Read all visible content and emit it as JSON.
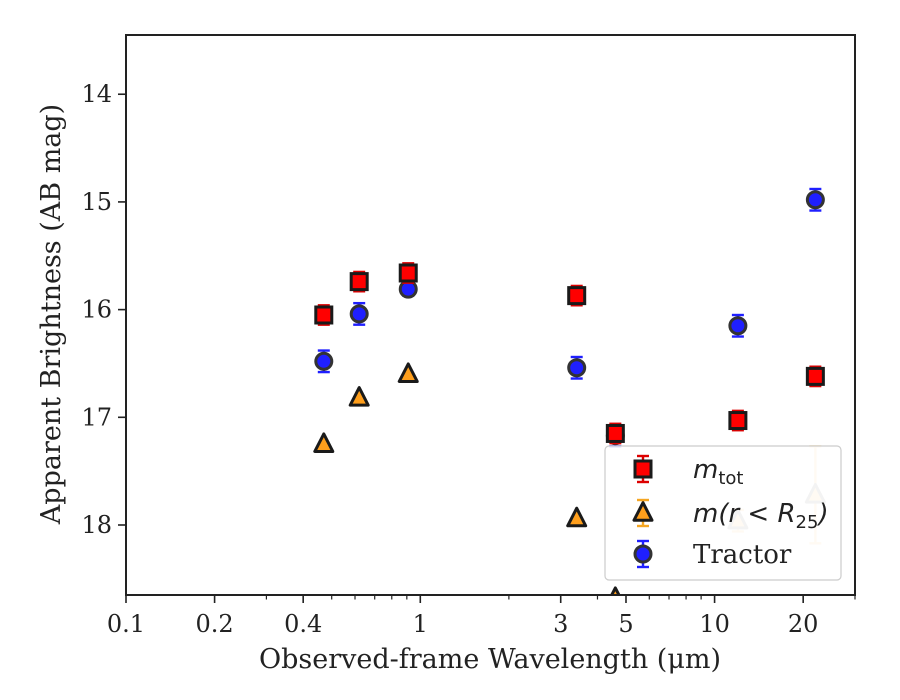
{
  "chart_data": {
    "type": "scatter",
    "xlabel": "Observed-frame Wavelength (μm)",
    "ylabel": "Apparent Brightness (AB mag)",
    "x_scale": "log",
    "xlim": [
      0.1,
      30
    ],
    "ylim": [
      18.65,
      13.45
    ],
    "y_inverted": true,
    "x_tick_labels": [
      "0.1",
      "0.2",
      "0.4",
      "1",
      "3",
      "5",
      "10",
      "20"
    ],
    "x_ticks": [
      0.1,
      0.2,
      0.4,
      1,
      3,
      5,
      10,
      20
    ],
    "y_tick_labels": [
      "14",
      "15",
      "16",
      "17",
      "18"
    ],
    "y_ticks": [
      14,
      15,
      16,
      17,
      18
    ],
    "legend_position": "lower-right",
    "series": [
      {
        "name": "m_tot",
        "legend_main": "m",
        "legend_sub": "tot",
        "marker": "square",
        "color": "#ff0000",
        "error_color": "#dd0000",
        "edge_color": "#1a1a1a",
        "points": [
          {
            "x": 0.47,
            "y": 16.05,
            "err": 0.09
          },
          {
            "x": 0.62,
            "y": 15.74,
            "err": 0.09
          },
          {
            "x": 0.91,
            "y": 15.66,
            "err": 0.09
          },
          {
            "x": 3.4,
            "y": 15.87,
            "err": 0.09
          },
          {
            "x": 4.6,
            "y": 17.15,
            "err": 0.09
          },
          {
            "x": 12.0,
            "y": 17.03,
            "err": 0.09
          },
          {
            "x": 22.0,
            "y": 16.62,
            "err": 0.09
          }
        ]
      },
      {
        "name": "m(r < R25)",
        "legend_main": "m(r < R",
        "legend_sub": "25",
        "legend_tail": ")",
        "marker": "triangle",
        "color": "#ff9f1c",
        "error_color": "#f5a623",
        "edge_color": "#1a1a1a",
        "points": [
          {
            "x": 0.47,
            "y": 17.25,
            "err": 0.0
          },
          {
            "x": 0.62,
            "y": 16.82,
            "err": 0.0
          },
          {
            "x": 0.91,
            "y": 16.6,
            "err": 0.0
          },
          {
            "x": 3.4,
            "y": 17.94,
            "err": 0.0
          },
          {
            "x": 4.6,
            "y": 18.68,
            "err": 0.0
          },
          {
            "x": 12.0,
            "y": 17.96,
            "err": 0.1,
            "faded": true
          },
          {
            "x": 22.0,
            "y": 17.72,
            "err": 0.45,
            "faded": true
          }
        ]
      },
      {
        "name": "Tractor",
        "marker": "circle",
        "color": "#1f1fff",
        "error_color": "#1f1fff",
        "edge_color": "#333333",
        "points": [
          {
            "x": 0.47,
            "y": 16.48,
            "err": 0.1
          },
          {
            "x": 0.62,
            "y": 16.04,
            "err": 0.1
          },
          {
            "x": 0.91,
            "y": 15.81,
            "err": 0.06
          },
          {
            "x": 3.4,
            "y": 16.54,
            "err": 0.1
          },
          {
            "x": 4.6,
            "y": 17.17,
            "err": 0.1
          },
          {
            "x": 12.0,
            "y": 16.15,
            "err": 0.1
          },
          {
            "x": 22.0,
            "y": 14.98,
            "err": 0.1
          }
        ]
      }
    ]
  }
}
